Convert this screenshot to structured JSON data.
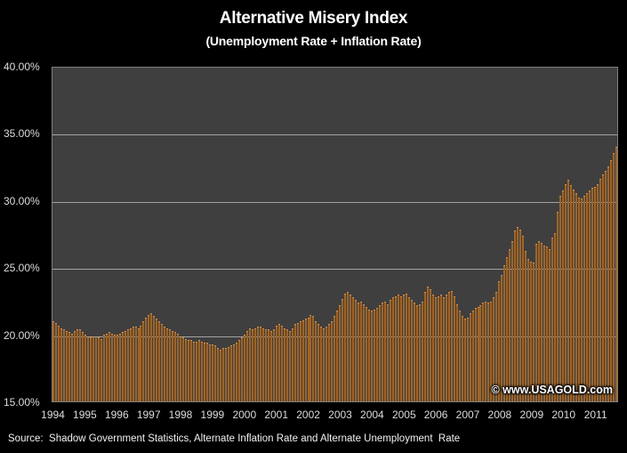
{
  "header": {
    "title": "Alternative Misery Index",
    "subtitle": "(Unemployment Rate + Inflation Rate)"
  },
  "watermark": "© www.USAGOLD.com",
  "source_note": "Source:  Shadow Government Statistics, Alternate Inflation Rate and Alternate Unemployment  Rate",
  "colors": {
    "page_background": "#000000",
    "plot_background": "#3F3F3F",
    "gridline": "#A3A3A3",
    "bar_orange": "#CE8538",
    "bar_edge_dark": "#5E3A16",
    "text_white": "#FFFFFF",
    "axis_text": "#DCDCDC"
  },
  "chart_data": {
    "type": "bar",
    "title": "Alternative Misery Index",
    "subtitle": "(Unemployment Rate + Inflation Rate)",
    "unit": "%",
    "frequency": "monthly",
    "x_start": "1994-01",
    "x_end": "2011-09",
    "ylim": [
      15,
      40
    ],
    "grid": true,
    "legend": false,
    "y_ticks": [
      {
        "value": 40,
        "label": "40.00%"
      },
      {
        "value": 35,
        "label": "35.00%"
      },
      {
        "value": 30,
        "label": "30.00%"
      },
      {
        "value": 25,
        "label": "25.00%"
      },
      {
        "value": 20,
        "label": "20.00%"
      },
      {
        "value": 15,
        "label": "15.00%"
      }
    ],
    "gridline_values": [
      35,
      30,
      25,
      20
    ],
    "x_tick_years": [
      "1994",
      "1995",
      "1996",
      "1997",
      "1998",
      "1999",
      "2000",
      "2001",
      "2002",
      "2003",
      "2004",
      "2005",
      "2006",
      "2007",
      "2008",
      "2009",
      "2010",
      "2011"
    ],
    "values": [
      21.0,
      20.9,
      20.7,
      20.5,
      20.4,
      20.3,
      20.2,
      20.1,
      20.3,
      20.4,
      20.4,
      20.2,
      20.0,
      19.9,
      19.8,
      19.9,
      19.9,
      19.8,
      19.7,
      20.0,
      20.1,
      20.2,
      20.1,
      20.0,
      20.0,
      20.1,
      20.2,
      20.3,
      20.4,
      20.5,
      20.6,
      20.6,
      20.5,
      20.7,
      21.0,
      21.3,
      21.5,
      21.6,
      21.4,
      21.2,
      21.0,
      20.8,
      20.6,
      20.5,
      20.4,
      20.3,
      20.2,
      20.1,
      19.9,
      19.8,
      19.7,
      19.6,
      19.6,
      19.5,
      19.5,
      19.6,
      19.5,
      19.4,
      19.4,
      19.3,
      19.3,
      19.2,
      19.0,
      18.9,
      19.0,
      19.0,
      19.1,
      19.2,
      19.3,
      19.4,
      19.6,
      19.8,
      20.0,
      20.3,
      20.5,
      20.4,
      20.5,
      20.6,
      20.6,
      20.5,
      20.4,
      20.4,
      20.3,
      20.4,
      20.7,
      20.8,
      20.7,
      20.5,
      20.4,
      20.3,
      20.5,
      20.8,
      20.9,
      21.0,
      21.1,
      21.2,
      21.3,
      21.5,
      21.4,
      21.0,
      20.8,
      20.6,
      20.5,
      20.6,
      20.8,
      21.0,
      21.4,
      21.8,
      22.2,
      22.7,
      23.1,
      23.2,
      23.0,
      22.8,
      22.6,
      22.4,
      22.5,
      22.3,
      22.1,
      21.9,
      21.8,
      21.9,
      22.0,
      22.2,
      22.4,
      22.5,
      22.3,
      22.6,
      22.8,
      22.9,
      23.0,
      22.9,
      23.0,
      23.1,
      22.8,
      22.6,
      22.4,
      22.2,
      22.3,
      22.5,
      23.2,
      23.6,
      23.4,
      23.0,
      22.8,
      22.9,
      23.0,
      22.8,
      23.0,
      23.2,
      23.3,
      22.9,
      22.3,
      21.8,
      21.4,
      21.2,
      21.3,
      21.6,
      21.8,
      22.0,
      22.1,
      22.2,
      22.4,
      22.5,
      22.4,
      22.5,
      22.8,
      23.2,
      24.0,
      24.5,
      25.2,
      25.8,
      26.4,
      27.0,
      27.8,
      28.1,
      27.9,
      27.4,
      26.3,
      25.7,
      25.5,
      25.4,
      26.8,
      27.0,
      26.9,
      26.7,
      26.6,
      26.4,
      27.3,
      27.6,
      29.2,
      30.4,
      30.8,
      31.3,
      31.6,
      31.2,
      30.9,
      30.6,
      30.3,
      30.2,
      30.4,
      30.6,
      30.8,
      31.0,
      31.1,
      31.3,
      31.7,
      32.0,
      32.3,
      32.6,
      33.1,
      33.6,
      34.1
    ]
  }
}
